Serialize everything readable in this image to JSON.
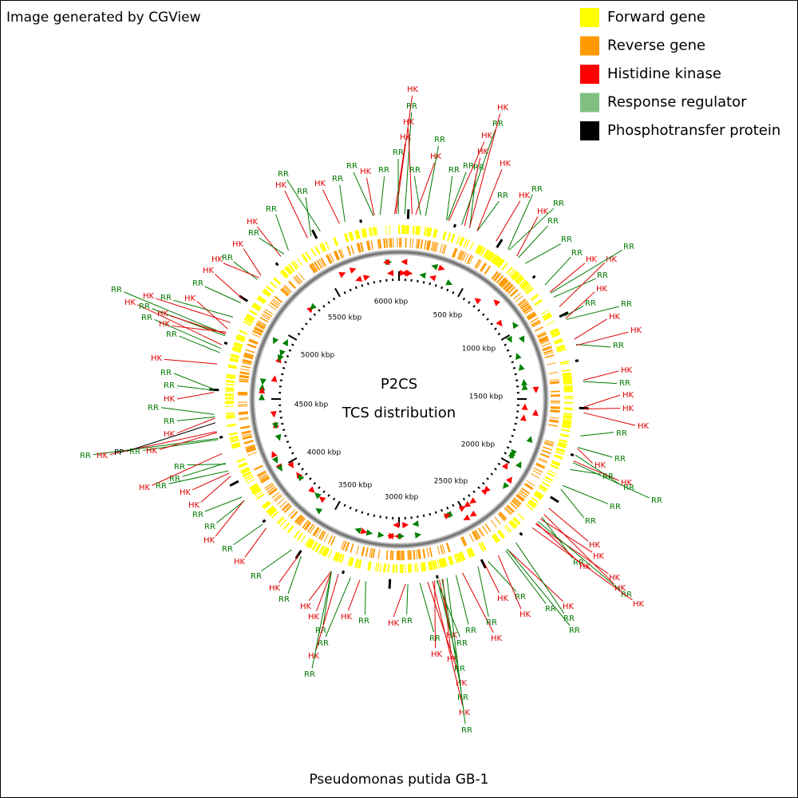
{
  "header": {
    "caption": "Image generated by CGView"
  },
  "legend": {
    "items": [
      {
        "label": "Forward gene",
        "color": "#ffff00"
      },
      {
        "label": "Reverse gene",
        "color": "#ff9900"
      },
      {
        "label": "Histidine kinase",
        "color": "#ff0000"
      },
      {
        "label": "Response regulator",
        "color": "#7fbf7f"
      },
      {
        "label": "Phosphotransfer protein",
        "color": "#000000"
      }
    ]
  },
  "center": {
    "title": "P2CS",
    "subtitle": "TCS distribution"
  },
  "ruler": {
    "labels": [
      "500 kbp",
      "1000 kbp",
      "1500 kbp",
      "2000 kbp",
      "2500 kbp",
      "3000 kbp",
      "3500 kbp",
      "4000 kbp",
      "4500 kbp",
      "5000 kbp",
      "5500 kbp",
      "6000 kbp"
    ]
  },
  "features": {
    "label_colors": {
      "HK": "#e00000",
      "RR": "#007a00",
      "PP": "#000000"
    },
    "labels": [
      "HK",
      "RR",
      "HK",
      "HK",
      "RR",
      "RR",
      "RR",
      "HK",
      "RR",
      "RR",
      "HK",
      "RR",
      "HK",
      "RR",
      "RR",
      "HK",
      "RR",
      "HK",
      "RR",
      "HK",
      "HK",
      "RR",
      "HK",
      "RR",
      "HK",
      "HK",
      "RR",
      "RR",
      "RR",
      "HK",
      "HK",
      "RR",
      "HK",
      "RR",
      "RR",
      "HK",
      "RR",
      "RR",
      "HK",
      "RR",
      "HK",
      "PP",
      "RR",
      "HK",
      "RR",
      "RR",
      "HK",
      "RR",
      "HK",
      "HK",
      "RR",
      "RR",
      "HK",
      "RR",
      "HK",
      "RR",
      "HK",
      "RR",
      "HK",
      "HK",
      "RR",
      "RR",
      "HK",
      "RR",
      "HK",
      "RR",
      "HK",
      "RR",
      "RR",
      "HK",
      "HK",
      "RR",
      "HK",
      "RR",
      "HK",
      "RR",
      "HK",
      "RR",
      "RR",
      "HK",
      "RR",
      "HK",
      "RR",
      "HK",
      "RR",
      "HK",
      "RR",
      "RR",
      "RR",
      "HK",
      "HK",
      "RR",
      "HK",
      "HK",
      "HK",
      "RR",
      "HK",
      "RR",
      "RR",
      "RR",
      "HK",
      "RR",
      "HK",
      "RR",
      "RR",
      "HK",
      "HK",
      "HK",
      "RR",
      "HK",
      "RR",
      "HK",
      "HK",
      "RR",
      "RR",
      "HK",
      "RR",
      "HK",
      "HK",
      "RR",
      "RR",
      "RR",
      "RR",
      "HK",
      "RR",
      "HK",
      "RR",
      "RR",
      "HK",
      "RR",
      "RR",
      "RR",
      "HK",
      "RR",
      "HK",
      "HK",
      "RR",
      "HK"
    ]
  },
  "footer": {
    "caption": "Pseudomonas putida GB-1"
  }
}
